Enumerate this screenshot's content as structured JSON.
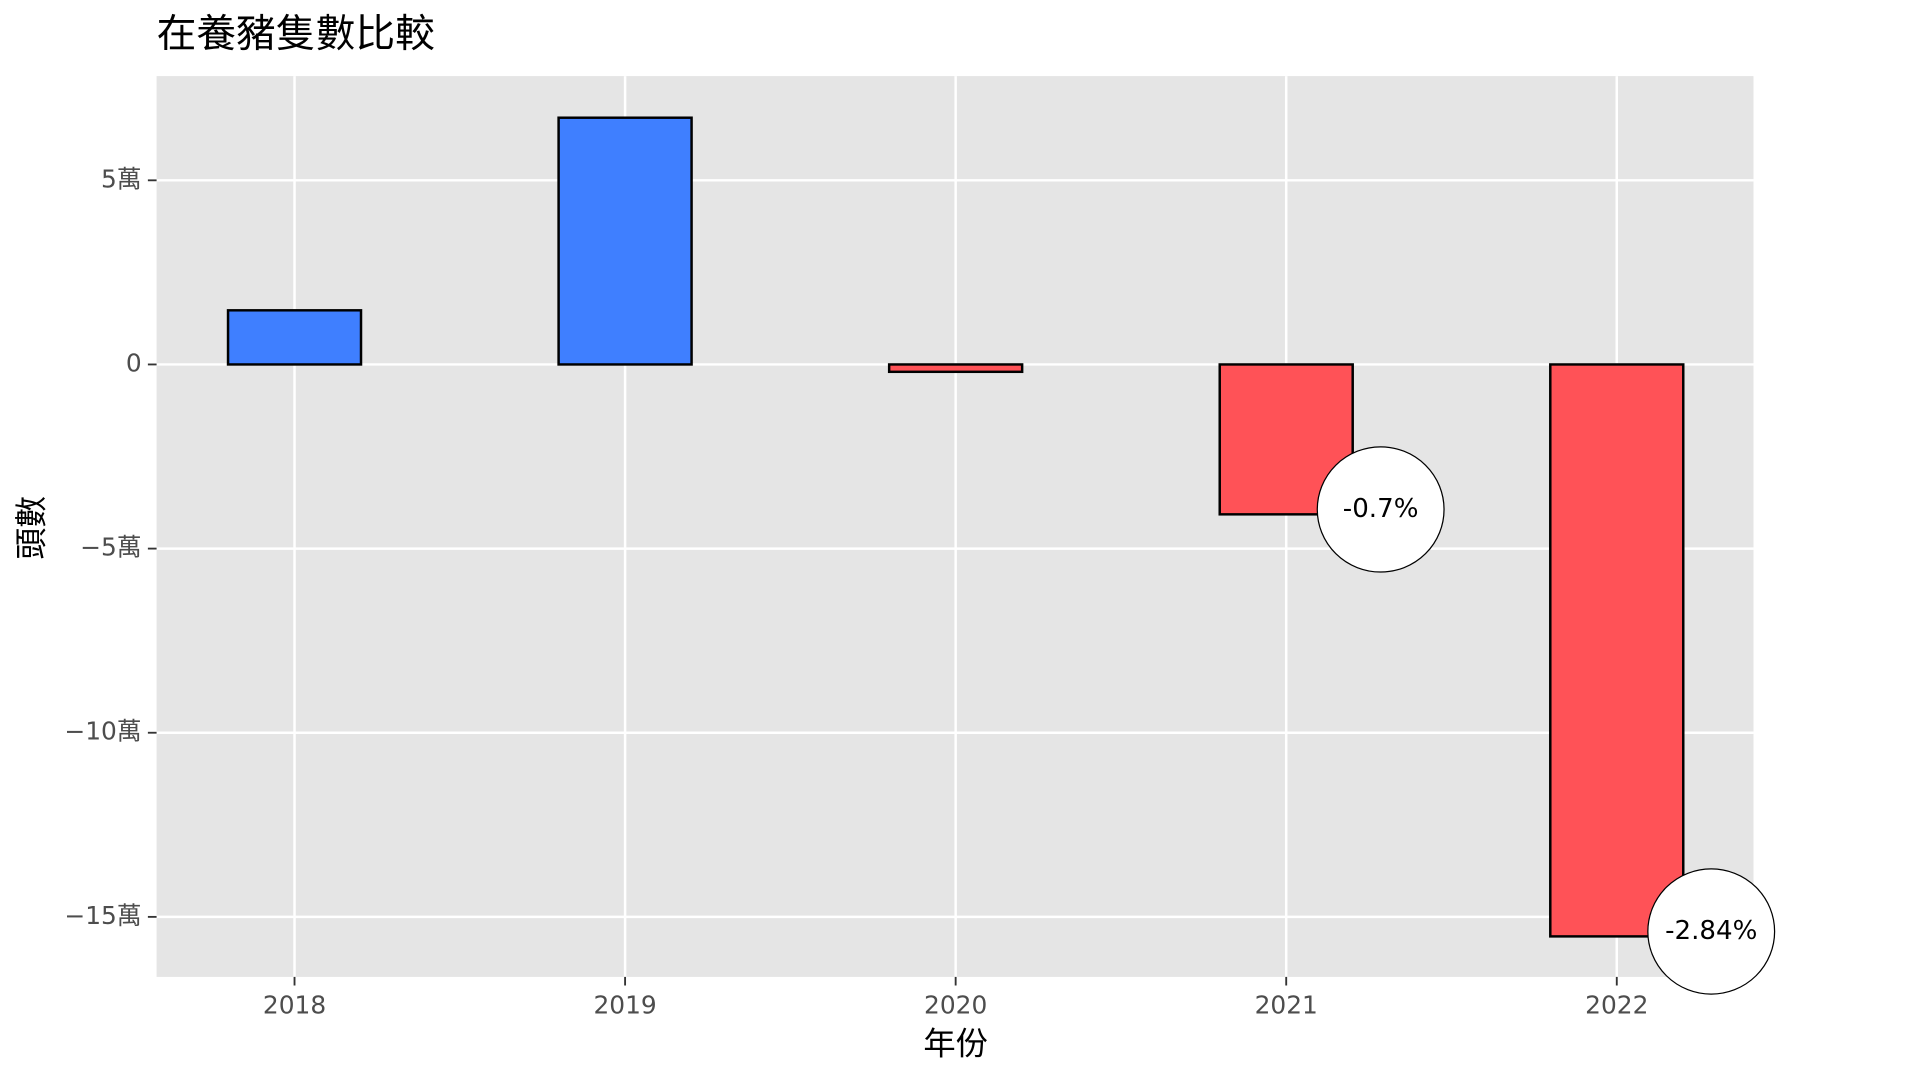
{
  "chart_data": {
    "type": "bar",
    "title": "在養豬隻數比較",
    "xlabel": "年份",
    "ylabel": "頭數",
    "categories": [
      "2018",
      "2019",
      "2020",
      "2021",
      "2022"
    ],
    "values": [
      14700,
      67000,
      -2000,
      -40700,
      -155300
    ],
    "colors": [
      "#3f7fff",
      "#3f7fff",
      "#ff5257",
      "#ff5257",
      "#ff5257"
    ],
    "ylim": [
      -166300,
      78300
    ],
    "yticks": [
      {
        "value": 50000,
        "label": "5萬"
      },
      0,
      {
        "value": -50000,
        "label": "−5萬"
      },
      {
        "value": -100000,
        "label": "−10萬"
      },
      {
        "value": -150000,
        "label": "−15萬"
      }
    ],
    "grid": true,
    "annotations": [
      {
        "x": "2021",
        "text": "-0.7%"
      },
      {
        "x": "2022",
        "text": "-2.84%"
      }
    ]
  }
}
